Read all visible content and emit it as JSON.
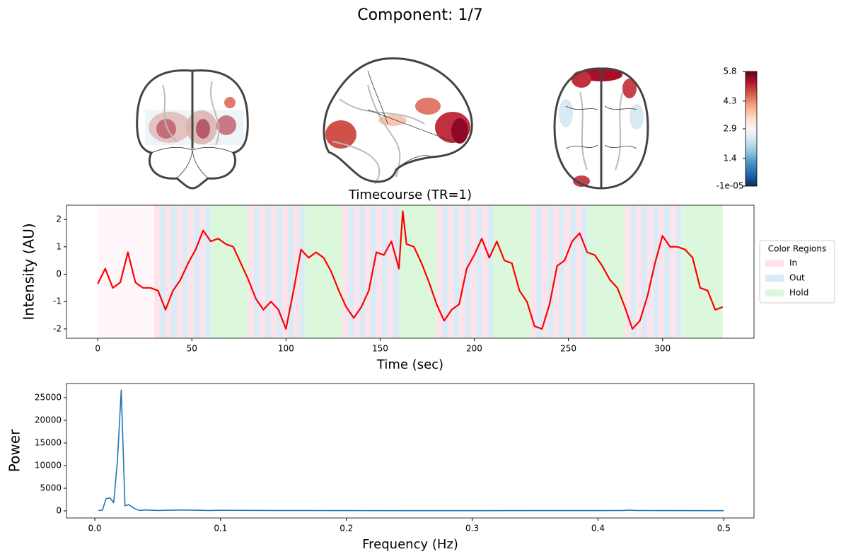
{
  "chart_data": [
    {
      "type": "colorbar",
      "title": "Component: 1/7",
      "ylim": [
        -1e-05,
        5.8
      ],
      "yticks": [
        {
          "value": -1e-05,
          "label": "-1e-05"
        },
        1.4,
        2.9,
        4.3,
        5.8
      ],
      "colormap": [
        "#053061",
        "#2166ac",
        "#4393c3",
        "#92c5de",
        "#d1e5f0",
        "#f7f7f7",
        "#fddbc7",
        "#f4a582",
        "#d6604d",
        "#b2182b",
        "#67001f"
      ]
    },
    {
      "type": "line",
      "title": "Timecourse (TR=1)",
      "xlabel": "Time (sec)",
      "ylabel": "Intensity (AU)",
      "x": [
        0,
        4,
        8,
        12,
        16,
        20,
        24,
        28,
        32,
        36,
        40,
        44,
        48,
        52,
        56,
        60,
        64,
        68,
        72,
        76,
        80,
        84,
        88,
        92,
        96,
        100,
        104,
        108,
        112,
        116,
        120,
        124,
        128,
        132,
        136,
        140,
        144,
        148,
        152,
        156,
        160,
        162,
        164,
        168,
        172,
        176,
        180,
        184,
        188,
        192,
        196,
        200,
        204,
        208,
        212,
        216,
        220,
        224,
        228,
        232,
        236,
        240,
        244,
        248,
        252,
        256,
        260,
        264,
        268,
        272,
        276,
        280,
        284,
        288,
        292,
        296,
        300,
        304,
        308,
        312,
        316,
        320,
        324,
        328,
        332
      ],
      "series": [
        {
          "color": "#ff0000",
          "values": [
            -0.35,
            0.2,
            -0.5,
            -0.3,
            0.8,
            -0.3,
            -0.5,
            -0.5,
            -0.6,
            -1.3,
            -0.6,
            -0.2,
            0.4,
            0.9,
            1.6,
            1.2,
            1.3,
            1.1,
            1.0,
            0.4,
            -0.2,
            -0.9,
            -1.3,
            -1.0,
            -1.3,
            -2.0,
            -0.6,
            0.9,
            0.6,
            0.8,
            0.6,
            0.1,
            -0.6,
            -1.2,
            -1.6,
            -1.2,
            -0.6,
            0.8,
            0.7,
            1.2,
            0.2,
            2.3,
            1.1,
            1.0,
            0.4,
            -0.3,
            -1.1,
            -1.7,
            -1.3,
            -1.1,
            0.2,
            0.7,
            1.3,
            0.6,
            1.2,
            0.5,
            0.4,
            -0.6,
            -1.0,
            -1.9,
            -2.0,
            -1.1,
            0.3,
            0.5,
            1.2,
            1.5,
            0.8,
            0.7,
            0.3,
            -0.2,
            -0.5,
            -1.2,
            -2.0,
            -1.7,
            -0.8,
            0.4,
            1.4,
            1.0,
            1.0,
            0.9,
            0.6,
            -0.5,
            -0.6,
            -1.3,
            -1.2
          ]
        }
      ],
      "xlim": [
        -16.6,
        348.6
      ],
      "xticks": [
        0,
        50,
        100,
        150,
        200,
        250,
        300
      ],
      "ylim": [
        -2.34,
        2.52
      ],
      "yticks": [
        -2,
        -1,
        0,
        1,
        2
      ],
      "legend": {
        "title": "Color Regions",
        "loc": "right"
      },
      "region_kinds": [
        {
          "name": "In",
          "color": "#ffe3ec"
        },
        {
          "name": "Out",
          "color": "#d9ebf5"
        },
        {
          "name": "Hold",
          "color": "#dcf8dc"
        }
      ],
      "regions": [
        [
          0,
          30,
          0,
          0.3
        ],
        [
          30,
          33,
          0
        ],
        [
          33,
          36,
          1
        ],
        [
          36,
          39,
          0
        ],
        [
          39,
          42,
          1
        ],
        [
          42,
          45,
          0
        ],
        [
          45,
          48,
          1
        ],
        [
          48,
          51,
          0
        ],
        [
          51,
          54,
          1
        ],
        [
          54,
          57,
          0
        ],
        [
          57,
          60,
          1
        ],
        [
          60,
          80,
          2
        ],
        [
          80,
          83,
          0
        ],
        [
          83,
          86,
          1
        ],
        [
          86,
          89,
          0
        ],
        [
          89,
          92,
          1
        ],
        [
          92,
          95,
          0
        ],
        [
          95,
          98,
          1
        ],
        [
          98,
          101,
          0
        ],
        [
          101,
          104,
          1
        ],
        [
          104,
          107,
          0
        ],
        [
          107,
          110,
          1
        ],
        [
          110,
          130,
          2
        ],
        [
          130,
          133,
          0
        ],
        [
          133,
          136,
          1
        ],
        [
          136,
          139,
          0
        ],
        [
          139,
          142,
          1
        ],
        [
          142,
          145,
          0
        ],
        [
          145,
          148,
          1
        ],
        [
          148,
          151,
          0
        ],
        [
          151,
          154,
          1
        ],
        [
          154,
          157,
          0
        ],
        [
          157,
          160,
          1
        ],
        [
          160,
          180,
          2
        ],
        [
          180,
          183,
          0
        ],
        [
          183,
          186,
          1
        ],
        [
          186,
          189,
          0
        ],
        [
          189,
          192,
          1
        ],
        [
          192,
          195,
          0
        ],
        [
          195,
          198,
          1
        ],
        [
          198,
          201,
          0
        ],
        [
          201,
          204,
          1
        ],
        [
          204,
          207,
          0
        ],
        [
          207,
          210,
          1
        ],
        [
          210,
          230,
          2
        ],
        [
          230,
          233,
          0
        ],
        [
          233,
          236,
          1
        ],
        [
          236,
          239,
          0
        ],
        [
          239,
          242,
          1
        ],
        [
          242,
          245,
          0
        ],
        [
          245,
          248,
          1
        ],
        [
          248,
          251,
          0
        ],
        [
          251,
          254,
          1
        ],
        [
          254,
          257,
          0
        ],
        [
          257,
          260,
          1
        ],
        [
          260,
          280,
          2
        ],
        [
          280,
          283,
          0
        ],
        [
          283,
          286,
          1
        ],
        [
          286,
          289,
          0
        ],
        [
          289,
          292,
          1
        ],
        [
          292,
          295,
          0
        ],
        [
          295,
          298,
          1
        ],
        [
          298,
          301,
          0
        ],
        [
          301,
          304,
          1
        ],
        [
          304,
          307,
          0
        ],
        [
          307,
          310,
          1
        ],
        [
          310,
          332,
          2
        ]
      ]
    },
    {
      "type": "line",
      "xlabel": "Frequency (Hz)",
      "ylabel": "Power",
      "x": [
        0.003,
        0.006,
        0.009,
        0.012,
        0.015,
        0.018,
        0.021,
        0.024,
        0.027,
        0.03,
        0.033,
        0.036,
        0.04,
        0.05,
        0.06,
        0.07,
        0.08,
        0.09,
        0.1,
        0.15,
        0.2,
        0.25,
        0.3,
        0.35,
        0.4,
        0.42,
        0.425,
        0.43,
        0.45,
        0.5
      ],
      "series": [
        {
          "color": "#1f77b4",
          "values": [
            100,
            150,
            2700,
            2900,
            1800,
            11000,
            26700,
            1100,
            1400,
            800,
            300,
            100,
            200,
            100,
            150,
            200,
            150,
            100,
            120,
            80,
            60,
            50,
            50,
            60,
            70,
            100,
            180,
            90,
            60,
            50
          ]
        }
      ],
      "xlim": [
        -0.0225,
        0.524
      ],
      "xticks": [
        {
          "value": 0,
          "label": "0.0"
        },
        0.1,
        0.2,
        0.3,
        0.4,
        0.5
      ],
      "ylim": [
        -1560,
        28130
      ],
      "yticks": [
        0,
        5000,
        10000,
        15000,
        20000,
        25000
      ]
    }
  ]
}
